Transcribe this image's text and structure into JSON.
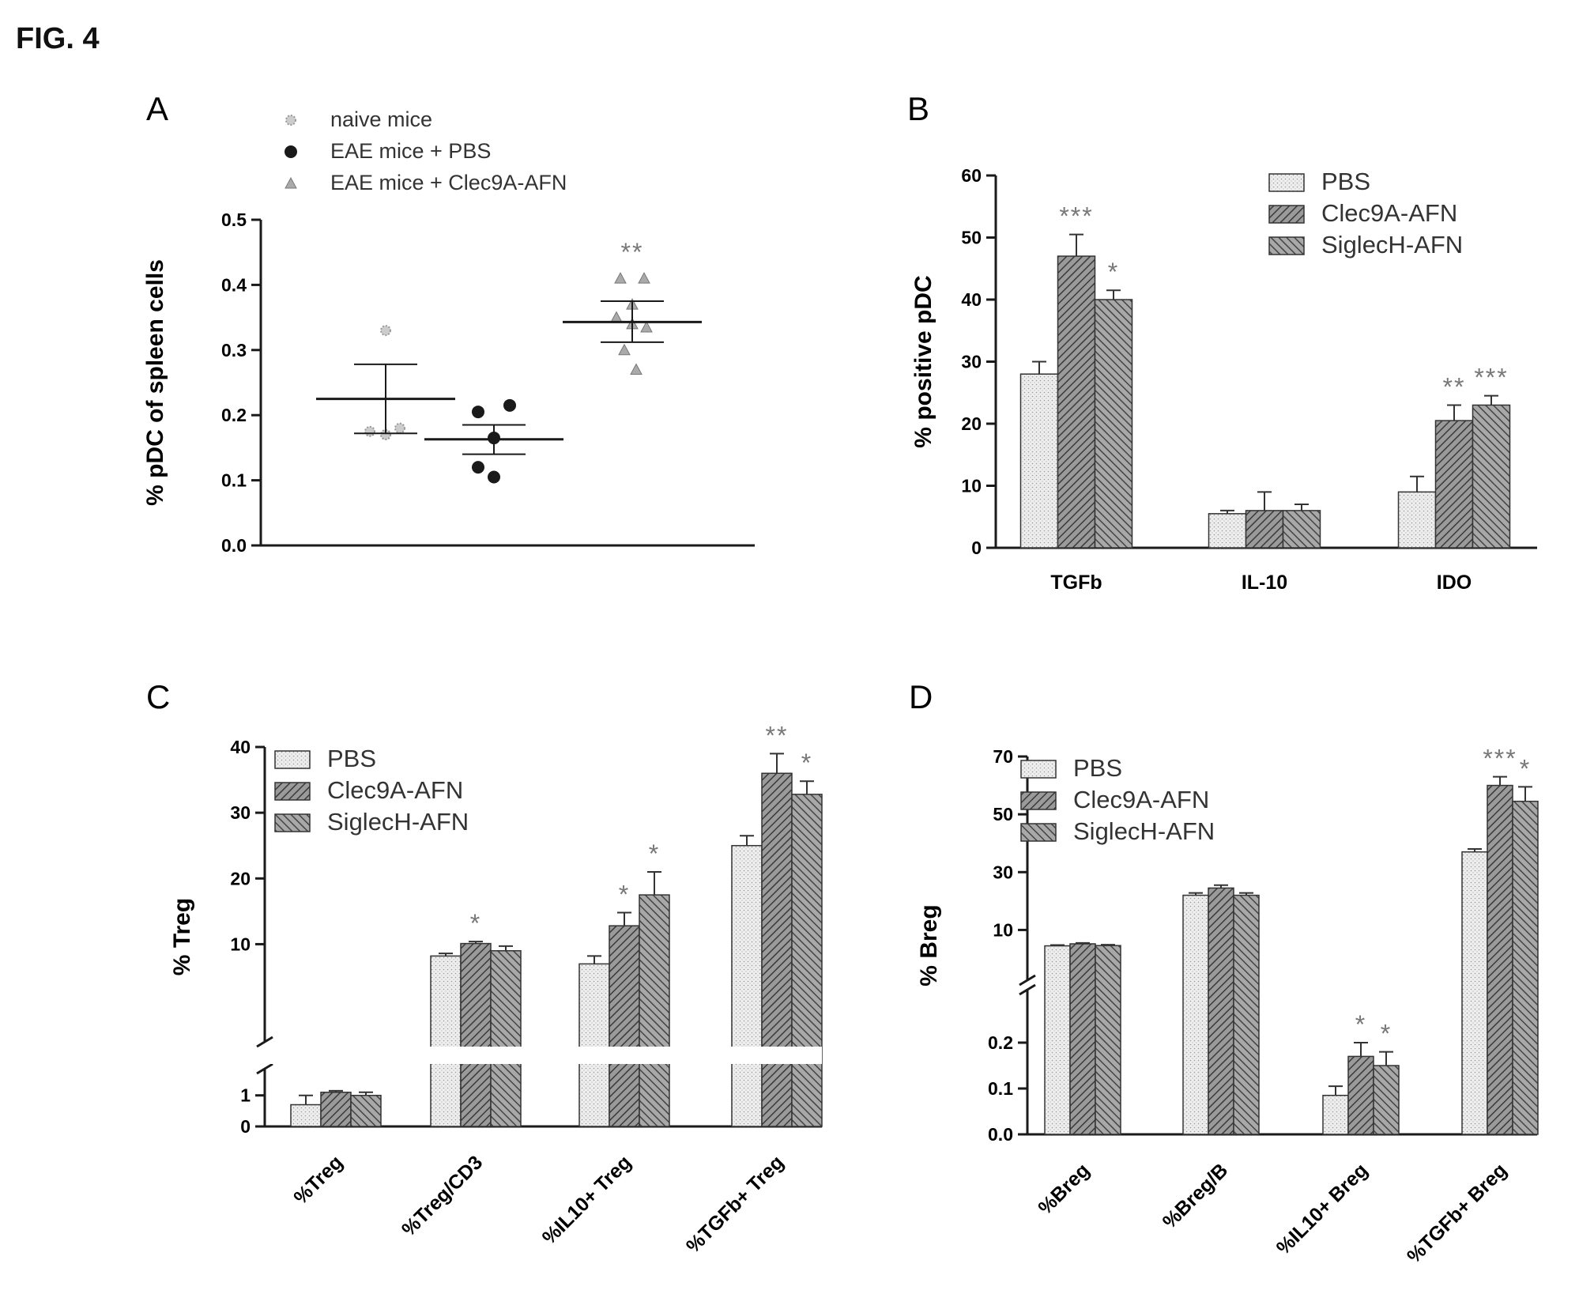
{
  "figure_title": "FIG. 4",
  "colors": {
    "PBS": "#e6e6e6",
    "Clec9A-AFN": "#8a8a8a",
    "SiglecH-AFN": "#9c9c9c",
    "axis": "#1a1a1a"
  },
  "chart_data": [
    {
      "panel": "A",
      "type": "scatter",
      "ylabel": "% pDC of spleen cells",
      "ylim": [
        0,
        0.5
      ],
      "y_ticks": [
        "0.0",
        "0.1",
        "0.2",
        "0.3",
        "0.4",
        "0.5"
      ],
      "legend": [
        {
          "name": "naive mice",
          "marker": "star"
        },
        {
          "name": "EAE mice + PBS",
          "marker": "circle"
        },
        {
          "name": "EAE mice + Clec9A-AFN",
          "marker": "triangle"
        }
      ],
      "groups": [
        {
          "name": "naive mice",
          "points": [
            0.33,
            0.17,
            0.175,
            0.18,
            0.17
          ],
          "mean": 0.225,
          "sem_upper": 0.278,
          "sem_lower": 0.172,
          "annotation": ""
        },
        {
          "name": "EAE mice + PBS",
          "points": [
            0.205,
            0.215,
            0.165,
            0.12,
            0.105
          ],
          "mean": 0.163,
          "sem_upper": 0.185,
          "sem_lower": 0.14,
          "annotation": ""
        },
        {
          "name": "EAE mice + Clec9A-AFN",
          "points": [
            0.41,
            0.41,
            0.37,
            0.35,
            0.335,
            0.34,
            0.3,
            0.27
          ],
          "mean": 0.343,
          "sem_upper": 0.375,
          "sem_lower": 0.312,
          "annotation": "**"
        }
      ]
    },
    {
      "panel": "B",
      "type": "bar",
      "ylabel": "% positive pDC",
      "ylim": [
        0,
        60
      ],
      "y_ticks": [
        "0",
        "10",
        "20",
        "30",
        "40",
        "50",
        "60"
      ],
      "categories": [
        "TGFb",
        "IL-10",
        "IDO"
      ],
      "series": [
        {
          "name": "PBS",
          "values": [
            28,
            5.5,
            9
          ],
          "errors": [
            2,
            0.5,
            2.5
          ],
          "annotations": [
            "",
            "",
            ""
          ]
        },
        {
          "name": "Clec9A-AFN",
          "values": [
            47,
            6,
            20.5
          ],
          "errors": [
            3.5,
            3,
            2.5
          ],
          "annotations": [
            "***",
            "",
            "**"
          ]
        },
        {
          "name": "SiglecH-AFN",
          "values": [
            40,
            6,
            23
          ],
          "errors": [
            1.5,
            1,
            1.5
          ],
          "annotations": [
            "*",
            "",
            "***"
          ]
        }
      ]
    },
    {
      "panel": "C",
      "type": "bar",
      "ylabel": "% Treg",
      "axis_break": true,
      "lower_ticks": [
        "0",
        "1"
      ],
      "upper_ticks": [
        "10",
        "20",
        "30",
        "40"
      ],
      "categories": [
        "%Treg",
        "%Treg/CD3",
        "%IL10+ Treg",
        "%TGFb+ Treg"
      ],
      "series": [
        {
          "name": "PBS",
          "values": [
            0.7,
            8.2,
            7.0,
            25
          ],
          "errors": [
            0.3,
            0.4,
            1.2,
            1.5
          ],
          "annotations": [
            "",
            "",
            "",
            ""
          ]
        },
        {
          "name": "Clec9A-AFN",
          "values": [
            1.1,
            10.1,
            12.8,
            36
          ],
          "errors": [
            0.05,
            0.3,
            2,
            3
          ],
          "annotations": [
            "",
            "*",
            "*",
            "**"
          ]
        },
        {
          "name": "SiglecH-AFN",
          "values": [
            1.0,
            9.0,
            17.5,
            32.8
          ],
          "errors": [
            0.1,
            0.7,
            3.5,
            2
          ],
          "annotations": [
            "",
            "",
            "*",
            "*"
          ]
        }
      ]
    },
    {
      "panel": "D",
      "type": "bar",
      "ylabel": "% Breg",
      "axis_break": true,
      "lower_ticks": [
        "0.0",
        "0.1",
        "0.2"
      ],
      "upper_ticks": [
        "10",
        "30",
        "50",
        "70"
      ],
      "categories": [
        "%Breg",
        "%Breg/B",
        "%IL10+ Breg",
        "%TGFb+ Breg"
      ],
      "series": [
        {
          "name": "PBS",
          "values": [
            4.5,
            22,
            0.085,
            37
          ],
          "errors": [
            0.3,
            0.8,
            0.02,
            1
          ],
          "annotations": [
            "",
            "",
            "",
            ""
          ]
        },
        {
          "name": "Clec9A-AFN",
          "values": [
            5.2,
            24.5,
            0.17,
            60
          ],
          "errors": [
            0.3,
            1,
            0.03,
            3
          ],
          "annotations": [
            "",
            "",
            "*",
            "***"
          ]
        },
        {
          "name": "SiglecH-AFN",
          "values": [
            4.6,
            22,
            0.15,
            54.5
          ],
          "errors": [
            0.3,
            0.8,
            0.03,
            5
          ],
          "annotations": [
            "",
            "",
            "*",
            "*"
          ]
        }
      ]
    }
  ]
}
